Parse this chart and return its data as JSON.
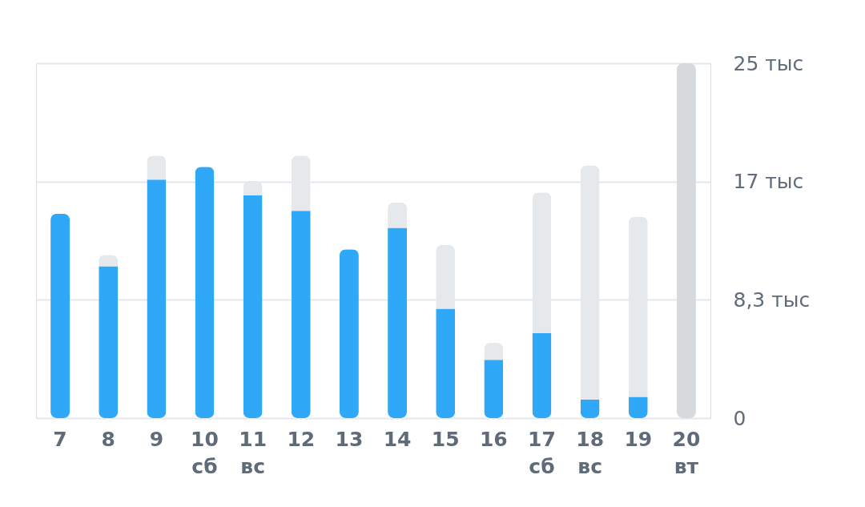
{
  "chart_data": {
    "type": "bar",
    "stacked": true,
    "categories": [
      "7",
      "8",
      "9",
      "10\nсб",
      "11\nвс",
      "12",
      "13",
      "14",
      "15",
      "16",
      "17\nсб",
      "18\nвс",
      "19",
      "20\nвт"
    ],
    "series": [
      {
        "color": "#2ea8f7",
        "values": [
          14.4,
          10.7,
          16.8,
          17.7,
          15.7,
          14.6,
          11.9,
          13.4,
          7.7,
          4.1,
          6.0,
          1.3,
          1.5,
          null
        ]
      },
      {
        "colors": [
          "#e6e9ec",
          "#e6e9ec",
          "#e6e9ec",
          "#e6e9ec",
          "#e6e9ec",
          "#e6e9ec",
          "#e6e9ec",
          "#e6e9ec",
          "#e6e9ec",
          "#e6e9ec",
          "#e6e9ec",
          "#e6e9ec",
          "#e6e9ec",
          "#d6dadd"
        ],
        "values": [
          null,
          0.8,
          1.7,
          null,
          1.0,
          3.9,
          null,
          1.8,
          4.5,
          1.2,
          9.9,
          16.5,
          12.7,
          25
        ]
      }
    ],
    "ylim": [
      0,
      25
    ],
    "yticks": [
      0,
      {
        "value": 8.333,
        "label": "8,3 тыс"
      },
      {
        "value": 16.667,
        "label": "17 тыс"
      },
      {
        "value": 25,
        "label": "25 тыс"
      }
    ],
    "grid": "y"
  }
}
